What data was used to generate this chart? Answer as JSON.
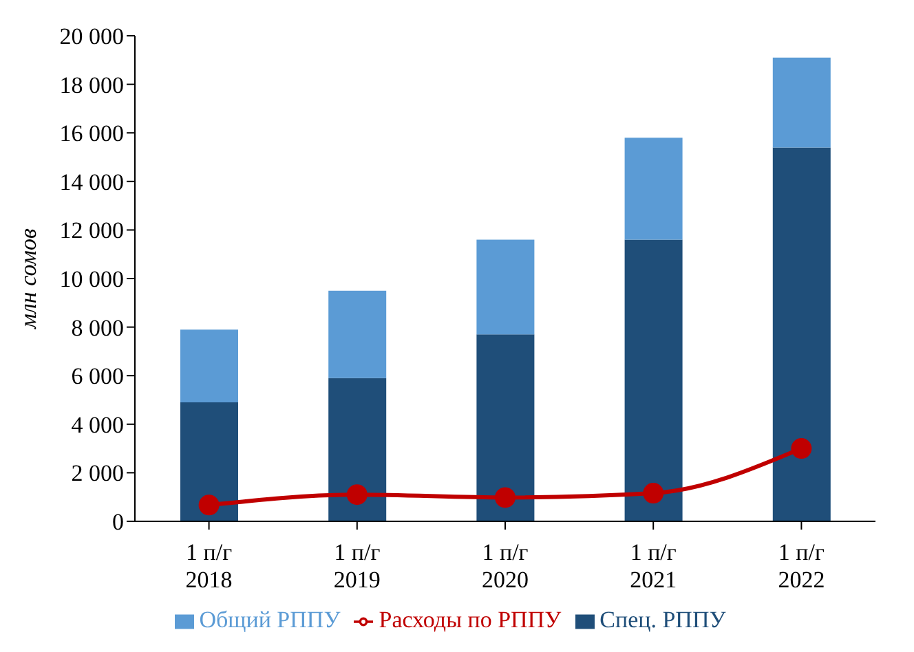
{
  "chart_data": {
    "type": "bar",
    "ylabel": "млн сомов",
    "categories": [
      "1 п/г\n2018",
      "1 п/г\n2019",
      "1 п/г\n2020",
      "1 п/г\n2021",
      "1 п/г\n2022"
    ],
    "stacked": true,
    "series": [
      {
        "name": "Спец. РППУ",
        "color": "#1f4e79",
        "values": [
          4900,
          5900,
          7700,
          11600,
          15400
        ]
      },
      {
        "name": "Общий РППУ",
        "color": "#5b9bd5",
        "values": [
          3000,
          3600,
          3900,
          4200,
          3700
        ]
      },
      {
        "name": "Расходы по РППУ",
        "type": "line",
        "color": "#c00000",
        "values": [
          670,
          1100,
          980,
          1160,
          3000
        ]
      }
    ],
    "ylim": [
      0,
      20000
    ],
    "yticks": [
      {
        "value": 0,
        "label": "0"
      },
      {
        "value": 2000,
        "label": "2 000"
      },
      {
        "value": 4000,
        "label": "4 000"
      },
      {
        "value": 6000,
        "label": "6 000"
      },
      {
        "value": 8000,
        "label": "8 000"
      },
      {
        "value": 10000,
        "label": "10 000"
      },
      {
        "value": 12000,
        "label": "12 000"
      },
      {
        "value": 14000,
        "label": "14 000"
      },
      {
        "value": 16000,
        "label": "16 000"
      },
      {
        "value": 18000,
        "label": "18 000"
      },
      {
        "value": 20000,
        "label": "20 000"
      }
    ],
    "grid": false,
    "legend": "bottom",
    "marker": "circle",
    "line_style": "solid"
  }
}
